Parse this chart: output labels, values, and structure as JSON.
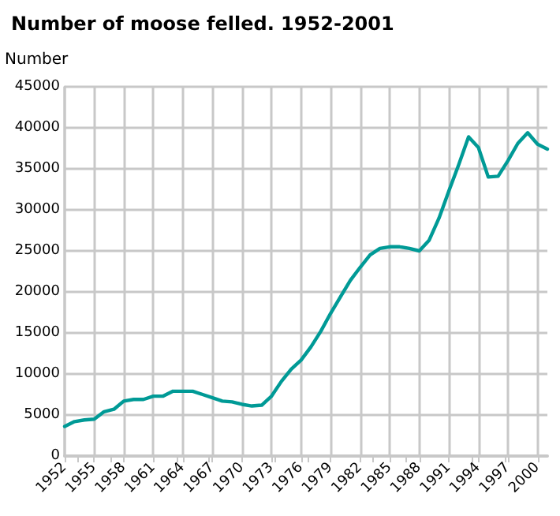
{
  "chart_data": {
    "type": "line",
    "title": "Number of moose felled. 1952-2001",
    "ylabel": "Number",
    "x": [
      1952,
      1953,
      1954,
      1955,
      1956,
      1957,
      1958,
      1959,
      1960,
      1961,
      1962,
      1963,
      1964,
      1965,
      1966,
      1967,
      1968,
      1969,
      1970,
      1971,
      1972,
      1973,
      1974,
      1975,
      1976,
      1977,
      1978,
      1979,
      1980,
      1981,
      1982,
      1983,
      1984,
      1985,
      1986,
      1987,
      1988,
      1989,
      1990,
      1991,
      1992,
      1993,
      1994,
      1995,
      1996,
      1997,
      1998,
      1999,
      2000,
      2001
    ],
    "series": [
      {
        "color": "#009a96",
        "values": [
          3600,
          4200,
          4400,
          4500,
          5400,
          5700,
          6700,
          6900,
          6900,
          7300,
          7300,
          7900,
          7900,
          7900,
          7500,
          7100,
          6700,
          6600,
          6300,
          6100,
          6200,
          7300,
          9100,
          10600,
          11700,
          13300,
          15200,
          17400,
          19400,
          21400,
          23000,
          24500,
          25300,
          25500,
          25500,
          25300,
          25000,
          26300,
          29000,
          32300,
          35500,
          38900,
          37600,
          34000,
          34100,
          36000,
          38100,
          39400,
          38000,
          37400
        ]
      }
    ],
    "xlim": [
      1952,
      2001
    ],
    "xticks": [
      1952,
      1955,
      1958,
      1961,
      1964,
      1967,
      1970,
      1973,
      1976,
      1979,
      1982,
      1985,
      1988,
      1991,
      1994,
      1997,
      2000
    ],
    "ylim": [
      0,
      45000
    ],
    "yticks": [
      0,
      5000,
      10000,
      15000,
      20000,
      25000,
      30000,
      35000,
      40000,
      45000
    ],
    "grid": true,
    "marker": "none",
    "line_style": "solid"
  }
}
